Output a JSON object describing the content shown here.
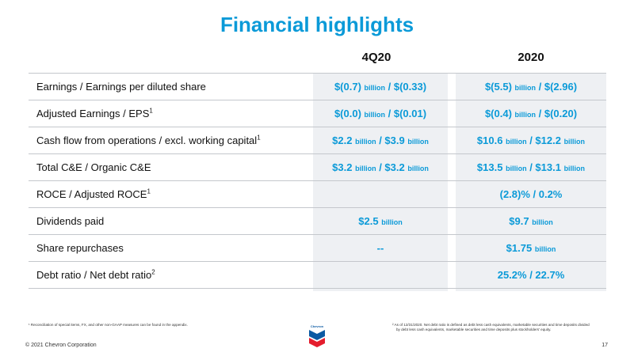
{
  "title": "Financial highlights",
  "columns": {
    "a": "4Q20",
    "b": "2020"
  },
  "rows": [
    {
      "label": "Earnings / Earnings per diluted share",
      "sup": "",
      "a": [
        {
          "t": "$(0.7) "
        },
        {
          "t": "billion",
          "u": 1
        },
        {
          "t": " / $(0.33)"
        }
      ],
      "b": [
        {
          "t": "$(5.5) "
        },
        {
          "t": "billion",
          "u": 1
        },
        {
          "t": " / $(2.96)"
        }
      ]
    },
    {
      "label": "Adjusted Earnings / EPS",
      "sup": "1",
      "a": [
        {
          "t": "$(0.0) "
        },
        {
          "t": "billion",
          "u": 1
        },
        {
          "t": " / $(0.01)"
        }
      ],
      "b": [
        {
          "t": "$(0.4) "
        },
        {
          "t": "billion",
          "u": 1
        },
        {
          "t": " / $(0.20)"
        }
      ]
    },
    {
      "label": "Cash flow from operations / excl. working capital",
      "sup": "1",
      "a": [
        {
          "t": "$2.2 "
        },
        {
          "t": "billion",
          "u": 1
        },
        {
          "t": " / $3.9 "
        },
        {
          "t": "billion",
          "u": 1
        }
      ],
      "b": [
        {
          "t": "$10.6 "
        },
        {
          "t": "billion",
          "u": 1
        },
        {
          "t": " / $12.2 "
        },
        {
          "t": "billion",
          "u": 1
        }
      ]
    },
    {
      "label": "Total C&E / Organic C&E",
      "sup": "",
      "a": [
        {
          "t": "$3.2 "
        },
        {
          "t": "billion",
          "u": 1
        },
        {
          "t": " / $3.2 "
        },
        {
          "t": "billion",
          "u": 1
        }
      ],
      "b": [
        {
          "t": "$13.5 "
        },
        {
          "t": "billion",
          "u": 1
        },
        {
          "t": " / $13.1 "
        },
        {
          "t": "billion",
          "u": 1
        }
      ]
    },
    {
      "label": "ROCE / Adjusted ROCE",
      "sup": "1",
      "a": [],
      "b": [
        {
          "t": "(2.8)% /  0.2%"
        }
      ]
    },
    {
      "label": "Dividends paid",
      "sup": "",
      "a": [
        {
          "t": "$2.5 "
        },
        {
          "t": "billion",
          "u": 1
        }
      ],
      "b": [
        {
          "t": "$9.7 "
        },
        {
          "t": "billion",
          "u": 1
        }
      ]
    },
    {
      "label": "Share repurchases",
      "sup": "",
      "a": [
        {
          "t": "--"
        }
      ],
      "b": [
        {
          "t": "$1.75 "
        },
        {
          "t": "billion",
          "u": 1
        }
      ]
    },
    {
      "label": "Debt ratio / Net debt ratio",
      "sup": "2",
      "a": [],
      "b": [
        {
          "t": "25.2% / 22.7%"
        }
      ]
    }
  ],
  "footnotes": {
    "left": "¹ Reconciliation of special items, FX, and other non-GAAP measures can be found in the appendix.",
    "right_line1": "² As of 12/31/2020.  Net debt ratio is defined as debt less cash equivalents, marketable securities and time deposits divided",
    "right_line2": "by debt less cash equivalents, marketable securities and time deposits plus stockholders' equity."
  },
  "copyright": "© 2021 Chevron Corporation",
  "page_number": "17",
  "logo_text": "Chevron",
  "colors": {
    "accent": "#0b9ad8",
    "logo_blue": "#0b5aa3",
    "logo_red": "#e41d2d"
  }
}
